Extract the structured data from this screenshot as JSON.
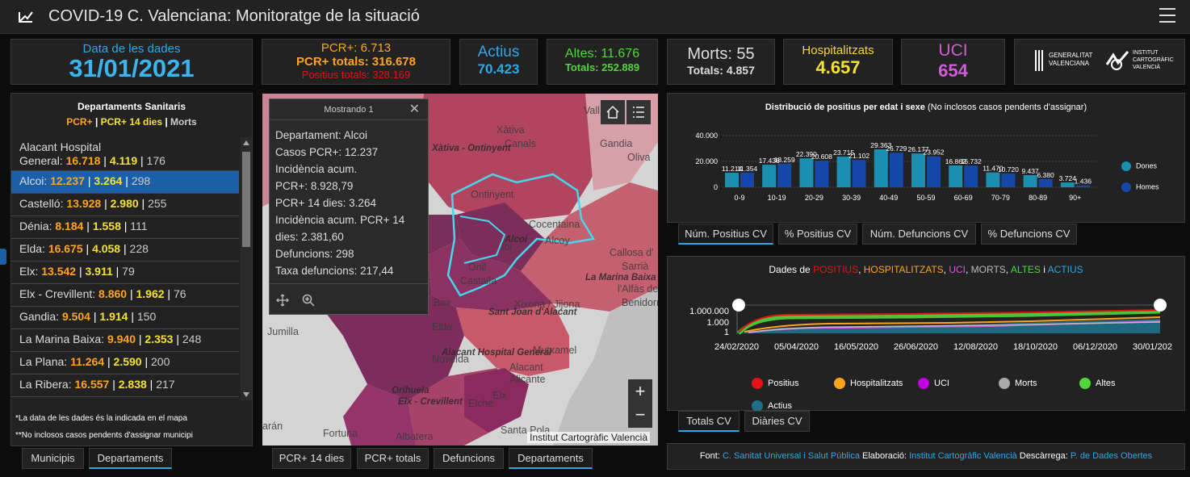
{
  "header": {
    "title": "COVID-19 C. Valenciana: Monitoratge de la situació"
  },
  "kpi": {
    "date_label": "Data de les dades",
    "date": "31/01/2021",
    "pcr_daily": "PCR+: 6.713",
    "pcr_total": "PCR+ totals: 316.678",
    "pos_total": "Positius totals: 328.169",
    "actius_label": "Actius",
    "actius": "70.423",
    "altes": "Altes: 11.676",
    "altes_total": "Totals: 252.889",
    "morts": "Morts: 55",
    "morts_total": "Totals: 4.857",
    "hosp_label": "Hospitalitzats",
    "hosp": "4.657",
    "uci_label": "UCI",
    "uci": "654",
    "logo1": "GENERALITAT VALENCIANA",
    "logo2": "INSTITUT CARTOGRÀFIC VALENCIÀ"
  },
  "departments": {
    "title": "Departaments Sanitaris",
    "legend_a": "PCR+",
    "legend_b": "PCR+ 14 dies",
    "legend_c": "Morts",
    "items": [
      {
        "name_a": "Alacant Hospital",
        "name": "General: ",
        "a": "16.718",
        "b": "4.119",
        "c": "176"
      },
      {
        "name": "Alcoi: ",
        "a": "12.237",
        "b": "3.264",
        "c": "298"
      },
      {
        "name": "Castelló: ",
        "a": "13.928",
        "b": "2.980",
        "c": "255"
      },
      {
        "name": "Dénia: ",
        "a": "8.184",
        "b": "1.558",
        "c": "111"
      },
      {
        "name": "Elda: ",
        "a": "16.675",
        "b": "4.058",
        "c": "228"
      },
      {
        "name": "Elx: ",
        "a": "13.542",
        "b": "3.911",
        "c": "79"
      },
      {
        "name": "Elx - Crevillent: ",
        "a": "8.860",
        "b": "1.962",
        "c": "76"
      },
      {
        "name": "Gandia: ",
        "a": "9.504",
        "b": "1.914",
        "c": "150"
      },
      {
        "name": "La Marina Baixa: ",
        "a": "9.940",
        "b": "2.353",
        "c": "248"
      },
      {
        "name": "La Plana: ",
        "a": "11.264",
        "b": "2.590",
        "c": "200"
      },
      {
        "name": "La Ribera: ",
        "a": "16.557",
        "b": "2.838",
        "c": "217"
      }
    ],
    "note1": "*La data de les dades és la indicada en el mapa",
    "note2": "**No inclosos casos pendents d'assignar municipi"
  },
  "left_tabs": {
    "municipis": "Municipis",
    "departaments": "Departaments"
  },
  "popup": {
    "title": "Mostrando 1",
    "l1": "Departament: Alcoi",
    "l2": "Casos PCR+: 12.237",
    "l3": "Incidència acum.",
    "l4": "PCR+: 8.928,79",
    "l5": "PCR+ 14 dies: 3.264",
    "l6": "Incidència acum. PCR+ 14",
    "l7": "dies: 2.381,60",
    "l8": "Defuncions: 298",
    "l9": "Taxa defuncions: 217,44"
  },
  "map": {
    "attribution": "Institut Cartogràfic Valencià",
    "labels": [
      "Xàtiva",
      "Canals",
      "Xàtiva - Ontinyent",
      "Gandia",
      "Oliva",
      "Ontinyent",
      "Cocentaina",
      "Alcoi",
      "Alcoy",
      "Callosa d'",
      "Sarrià",
      "La Marina Baixa",
      "l'Alfàs de",
      "Benidorm",
      "Onil",
      "Castalla",
      "Ibi",
      "Xixona / Jijona",
      "Sant Joan d'Alacant",
      "Jumilla",
      "Elda",
      "Novelda",
      "Alacant Hospital General",
      "Mutxamel",
      "Alacant",
      "Alicante",
      "Orihuela",
      "Elx - Crevillent",
      "Elche",
      "Elx",
      "Fortuna",
      "Santa Pola",
      "Albatera",
      "Vall",
      "Bax",
      "arán"
    ]
  },
  "map_tabs": [
    "PCR+ 14 dies",
    "PCR+ totals",
    "Defuncions",
    "Departaments"
  ],
  "age_chart": {
    "title": "Distribució de positius per edat i sexe",
    "subtitle": "(No inclosos casos pendents d'assignar)",
    "tabs": [
      "Núm. Positius CV",
      "% Positius CV",
      "Núm. Defuncions CV",
      "% Defuncions CV"
    ]
  },
  "trend_chart": {
    "title_prefix": "Dades de ",
    "t1": "POSITIUS",
    "t2": "HOSPITALITZATS",
    "t3": "UCI",
    "t4": "MORTS",
    "t5": "ALTES",
    "t6": "ACTIUS",
    "y_ticks": [
      "1.000.000",
      "1.000",
      "1"
    ],
    "x_ticks": [
      "24/02/2020",
      "05/04/2020",
      "16/05/2020",
      "26/06/2020",
      "12/08/2020",
      "18/10/2020",
      "06/12/2020",
      "30/01/202"
    ],
    "legend": [
      "Positius",
      "Hospitalitzats",
      "UCI",
      "Morts",
      "Altes",
      "Actius"
    ],
    "tabs": [
      "Totals CV",
      "Diàries CV"
    ]
  },
  "footer": {
    "font_label": "Font:",
    "font_val": "C. Sanitat Universal i Salut Pública",
    "elab_label": "Elaboració:",
    "elab_val": "Institut Cartogràfic Valencià",
    "desc_label": "Descàrrega:",
    "desc_val": "P. de Dades Obertes"
  },
  "colors": {
    "dones": "#1a8fb0",
    "homes": "#1447a8"
  },
  "chart_data": {
    "type": "bar",
    "title": "Distribució de positius per edat i sexe (No inclosos casos pendents d'assignar)",
    "categories": [
      "0-9",
      "10-19",
      "20-29",
      "30-39",
      "40-49",
      "50-59",
      "60-69",
      "70-79",
      "80-89",
      "90+"
    ],
    "series": [
      {
        "name": "Dones",
        "values": [
          11214,
          17436,
          22390,
          23715,
          29363,
          26177,
          16862,
          11470,
          9437,
          3724
        ]
      },
      {
        "name": "Homes",
        "values": [
          11354,
          18259,
          20608,
          21102,
          26729,
          23952,
          16732,
          10720,
          6380,
          1436
        ]
      }
    ],
    "value_labels": [
      [
        "11.214",
        "17.436",
        "22.390",
        "23.715",
        "29.363",
        "26.177",
        "16.862",
        "11.470",
        "9.437",
        "3.724"
      ],
      [
        "11.354",
        "18.259",
        "20.608",
        "21.102",
        "26.729",
        "23.952",
        "16.732",
        "10.720",
        "6.380",
        "1.436"
      ]
    ],
    "y_ticks": [
      "40.000",
      "20.000",
      "0"
    ],
    "ylim": [
      0,
      40000
    ],
    "legend_position": "right"
  }
}
